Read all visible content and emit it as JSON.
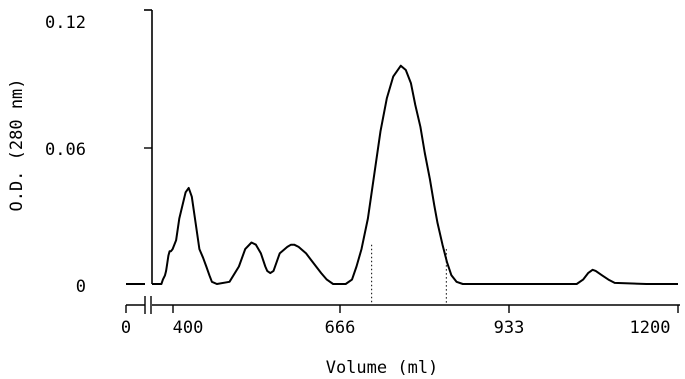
{
  "chart_data": {
    "type": "line",
    "title": "",
    "xlabel": "Volume (ml)",
    "ylabel": "O.D. (280 nm)",
    "x_ticks": [
      "0",
      "400",
      "666",
      "933",
      "1200"
    ],
    "y_ticks": [
      "0",
      "0.06",
      "0.12"
    ],
    "x_tick_values": [
      0,
      400,
      666,
      933,
      1200
    ],
    "y_tick_values": [
      0,
      0.06,
      0.12
    ],
    "xlim": [
      0,
      1200
    ],
    "ylim": [
      0,
      0.12
    ],
    "axis_break": "between 0 and 400",
    "series": [
      {
        "x": [
          300,
          345,
          352,
          362,
          367,
          372,
          378,
          384,
          390,
          398,
          405,
          410,
          420,
          425,
          430,
          436,
          442,
          448,
          453,
          458,
          462,
          470,
          490,
          505,
          515,
          525,
          532,
          540,
          547,
          550,
          555,
          560,
          565,
          570,
          582,
          588,
          593,
          600,
          612,
          620,
          628,
          636,
          645,
          655,
          665,
          675,
          685,
          692,
          700,
          710,
          720,
          730,
          740,
          750,
          762,
          770,
          778,
          785,
          793,
          800,
          808,
          815,
          820,
          828,
          835,
          842,
          850,
          860,
          880,
          920,
          960,
          1000,
          1040,
          1050,
          1058,
          1065,
          1070,
          1080,
          1090,
          1100,
          1150,
          1200
        ],
        "y": [
          0,
          0,
          0.002,
          0.004,
          0.006,
          0.009,
          0.013,
          0.015,
          0.015,
          0.016,
          0.02,
          0.03,
          0.042,
          0.044,
          0.04,
          0.028,
          0.016,
          0.012,
          0.008,
          0.004,
          0.001,
          0,
          0.001,
          0.008,
          0.016,
          0.019,
          0.018,
          0.014,
          0.008,
          0.006,
          0.005,
          0.006,
          0.01,
          0.014,
          0.017,
          0.018,
          0.018,
          0.017,
          0.014,
          0.011,
          0.008,
          0.005,
          0.002,
          0,
          0,
          0,
          0.002,
          0.008,
          0.016,
          0.03,
          0.05,
          0.07,
          0.085,
          0.095,
          0.1,
          0.098,
          0.092,
          0.082,
          0.072,
          0.06,
          0.048,
          0.036,
          0.028,
          0.018,
          0.01,
          0.004,
          0.001,
          0,
          0,
          0,
          0,
          0,
          0,
          0.002,
          0.005,
          0.0065,
          0.006,
          0.004,
          0.002,
          0.0005,
          0,
          0
        ]
      },
      {
        "x": [
          0,
          275
        ],
        "y": [
          0,
          0
        ]
      }
    ],
    "annotations": [
      {
        "type": "dotted-vline",
        "x": 716,
        "y_top": 0.018
      },
      {
        "type": "dotted-vline",
        "x": 834,
        "y_top": 0.016
      }
    ],
    "grid": false,
    "legend": "none"
  },
  "colors": {
    "ink": "#000000",
    "background": "#ffffff"
  }
}
